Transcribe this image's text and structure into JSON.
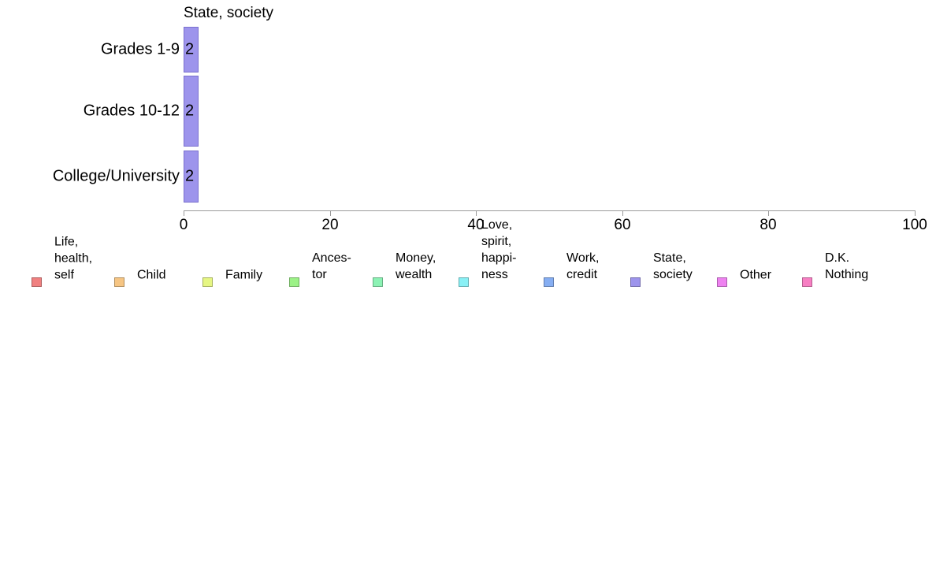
{
  "chart_data": {
    "type": "bar",
    "orientation": "horizontal",
    "title": "State, society",
    "categories": [
      "Grades 1-9",
      "Grades 10-12",
      "College/University"
    ],
    "series": [
      {
        "name": "State, society",
        "color": "#9d94ec",
        "border_color": "#7a70ce",
        "values": [
          2,
          2,
          2
        ]
      }
    ],
    "value_labels": [
      "2",
      "2",
      "2"
    ],
    "xlabel": "",
    "ylabel": "",
    "xlim": [
      0,
      100
    ],
    "xticks": [
      0,
      20,
      40,
      60,
      80,
      100
    ],
    "xtick_labels": [
      "0",
      "20",
      "40",
      "60",
      "80",
      "100"
    ],
    "grid": false,
    "legend_position": "bottom",
    "legend": {
      "items": [
        {
          "label": "Life,\nhealth,\nself",
          "color": "#f08080"
        },
        {
          "label": "Child",
          "color": "#f6c583"
        },
        {
          "label": "Family",
          "color": "#e6f683"
        },
        {
          "label": "Ances-\ntor",
          "color": "#9cf287"
        },
        {
          "label": "Money,\nwealth",
          "color": "#8cf2b4"
        },
        {
          "label": "Love,\nspirit,\nhappi-\nness",
          "color": "#89f0f5"
        },
        {
          "label": "Work,\ncredit",
          "color": "#86aef2"
        },
        {
          "label": "State,\nsociety",
          "color": "#9d94ec"
        },
        {
          "label": "Other",
          "color": "#ee82f0"
        },
        {
          "label": "D.K.\nNothing",
          "color": "#f77fc3"
        }
      ]
    }
  }
}
